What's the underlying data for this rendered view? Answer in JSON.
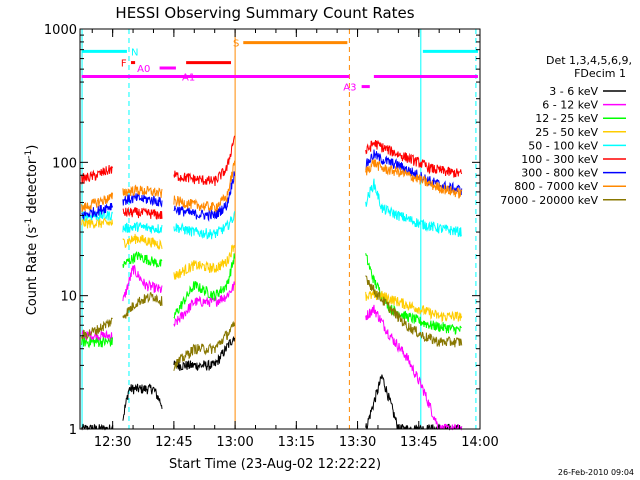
{
  "chart_data": {
    "type": "line",
    "title": "HESSI Observing Summary Count Rates",
    "xlabel": "Start Time (23-Aug-02 12:22:22)",
    "ylabel": "Count Rate (s",
    "ylabel_sup": "-1",
    "ylabel_tail": " detector",
    "ylabel_end": ")",
    "yscale": "log",
    "ylim": [
      1,
      1000
    ],
    "xlim": [
      22,
      120
    ],
    "x_unit": "minutes after 12:00",
    "x_ticks": [
      {
        "v": 30,
        "label": "12:30"
      },
      {
        "v": 45,
        "label": "12:45"
      },
      {
        "v": 60,
        "label": "13:00"
      },
      {
        "v": 75,
        "label": "13:15"
      },
      {
        "v": 90,
        "label": "13:30"
      },
      {
        "v": 105,
        "label": "13:45"
      },
      {
        "v": 120,
        "label": "14:00"
      }
    ],
    "y_ticks": [
      {
        "v": 1,
        "label": "1"
      },
      {
        "v": 10,
        "label": "10"
      },
      {
        "v": 100,
        "label": "100"
      },
      {
        "v": 1000,
        "label": "1000"
      }
    ],
    "legend_header": [
      "Det 1,3,4,5,6,9,",
      "FDecim 1"
    ],
    "legend_position": "right",
    "timestamp": "26-Feb-2010 09:04",
    "segments": [
      [
        22.4,
        30.0
      ],
      [
        32.5,
        42.2
      ],
      [
        45.0,
        59.9
      ],
      [
        92.0,
        115.6
      ]
    ],
    "series": [
      {
        "name": "3 - 6 keV",
        "color": "#000000",
        "values": [
          [
            22.4,
            1.0
          ],
          [
            30.0,
            1.0
          ],
          [
            32.5,
            1.2
          ],
          [
            34.0,
            2.0
          ],
          [
            37.0,
            2.0
          ],
          [
            40.0,
            2.0
          ],
          [
            42.2,
            1.5
          ],
          [
            45.0,
            3.0
          ],
          [
            50.0,
            3.0
          ],
          [
            55.0,
            3.0
          ],
          [
            59.9,
            5.0
          ],
          [
            92.0,
            1.0
          ],
          [
            96.0,
            2.5
          ],
          [
            100.0,
            1.0
          ],
          [
            108.0,
            1.0
          ],
          [
            115.6,
            1.0
          ]
        ]
      },
      {
        "name": "6 - 12 keV",
        "color": "#ff00ff",
        "values": [
          [
            22.4,
            5.0
          ],
          [
            30.0,
            5.0
          ],
          [
            32.5,
            9.0
          ],
          [
            35.0,
            16.0
          ],
          [
            38.0,
            12.0
          ],
          [
            42.2,
            11.0
          ],
          [
            45.0,
            6.0
          ],
          [
            50.0,
            9.0
          ],
          [
            55.0,
            9.0
          ],
          [
            58.0,
            10.0
          ],
          [
            59.9,
            12.0
          ],
          [
            92.0,
            7.0
          ],
          [
            94.0,
            8.0
          ],
          [
            98.0,
            5.0
          ],
          [
            102.0,
            3.5
          ],
          [
            106.0,
            2.0
          ],
          [
            110.0,
            1.0
          ],
          [
            115.6,
            1.0
          ]
        ]
      },
      {
        "name": "12 - 25 keV",
        "color": "#00ff00",
        "values": [
          [
            22.4,
            4.5
          ],
          [
            30.0,
            4.5
          ],
          [
            32.5,
            17.0
          ],
          [
            36.0,
            20.0
          ],
          [
            40.0,
            18.0
          ],
          [
            42.2,
            17.0
          ],
          [
            45.0,
            7.0
          ],
          [
            50.0,
            12.0
          ],
          [
            55.0,
            10.0
          ],
          [
            58.0,
            12.0
          ],
          [
            59.9,
            20.0
          ],
          [
            92.0,
            20.0
          ],
          [
            94.0,
            13.0
          ],
          [
            98.0,
            8.0
          ],
          [
            102.0,
            7.0
          ],
          [
            108.0,
            6.0
          ],
          [
            115.6,
            5.5
          ]
        ]
      },
      {
        "name": "25 - 50 keV",
        "color": "#ffcc00",
        "values": [
          [
            22.4,
            35.0
          ],
          [
            30.0,
            35.0
          ],
          [
            32.5,
            25.0
          ],
          [
            36.0,
            27.0
          ],
          [
            40.0,
            25.0
          ],
          [
            42.2,
            24.0
          ],
          [
            45.0,
            14.0
          ],
          [
            50.0,
            17.0
          ],
          [
            55.0,
            16.0
          ],
          [
            58.0,
            18.0
          ],
          [
            59.9,
            25.0
          ],
          [
            92.0,
            10.0
          ],
          [
            96.0,
            10.0
          ],
          [
            100.0,
            9.0
          ],
          [
            105.0,
            8.0
          ],
          [
            110.0,
            7.0
          ],
          [
            115.6,
            7.0
          ]
        ]
      },
      {
        "name": "50 - 100 keV",
        "color": "#00ffff",
        "values": [
          [
            22.4,
            40.0
          ],
          [
            30.0,
            40.0
          ],
          [
            32.5,
            32.0
          ],
          [
            36.0,
            33.0
          ],
          [
            40.0,
            32.0
          ],
          [
            42.2,
            32.0
          ],
          [
            45.0,
            33.0
          ],
          [
            50.0,
            30.0
          ],
          [
            55.0,
            29.0
          ],
          [
            58.0,
            33.0
          ],
          [
            59.9,
            40.0
          ],
          [
            92.0,
            50.0
          ],
          [
            94.0,
            70.0
          ],
          [
            96.0,
            45.0
          ],
          [
            100.0,
            40.0
          ],
          [
            105.0,
            35.0
          ],
          [
            110.0,
            32.0
          ],
          [
            115.6,
            30.0
          ]
        ]
      },
      {
        "name": "100 - 300 keV",
        "color": "#ff0000",
        "values": [
          [
            22.4,
            75.0
          ],
          [
            26.0,
            80.0
          ],
          [
            30.0,
            90.0
          ],
          [
            32.5,
            42.0
          ],
          [
            36.0,
            42.0
          ],
          [
            40.0,
            41.0
          ],
          [
            42.2,
            40.0
          ],
          [
            45.0,
            80.0
          ],
          [
            50.0,
            75.0
          ],
          [
            55.0,
            72.0
          ],
          [
            58.0,
            90.0
          ],
          [
            59.9,
            160.0
          ],
          [
            92.0,
            120.0
          ],
          [
            94.0,
            140.0
          ],
          [
            96.0,
            130.0
          ],
          [
            100.0,
            115.0
          ],
          [
            105.0,
            100.0
          ],
          [
            108.0,
            90.0
          ],
          [
            112.0,
            85.0
          ],
          [
            115.6,
            82.0
          ]
        ]
      },
      {
        "name": "300 - 800 keV",
        "color": "#0000ff",
        "values": [
          [
            22.4,
            40.0
          ],
          [
            26.0,
            43.0
          ],
          [
            30.0,
            48.0
          ],
          [
            32.5,
            52.0
          ],
          [
            36.0,
            54.0
          ],
          [
            40.0,
            52.0
          ],
          [
            42.2,
            50.0
          ],
          [
            45.0,
            45.0
          ],
          [
            50.0,
            41.0
          ],
          [
            55.0,
            40.0
          ],
          [
            58.0,
            48.0
          ],
          [
            59.9,
            85.0
          ],
          [
            92.0,
            95.0
          ],
          [
            94.0,
            115.0
          ],
          [
            96.0,
            105.0
          ],
          [
            100.0,
            95.0
          ],
          [
            105.0,
            80.0
          ],
          [
            108.0,
            72.0
          ],
          [
            112.0,
            65.0
          ],
          [
            115.6,
            62.0
          ]
        ]
      },
      {
        "name": "800 - 7000 keV",
        "color": "#ff8800",
        "values": [
          [
            22.4,
            45.0
          ],
          [
            26.0,
            50.0
          ],
          [
            30.0,
            55.0
          ],
          [
            32.5,
            60.0
          ],
          [
            36.0,
            62.0
          ],
          [
            40.0,
            60.0
          ],
          [
            42.2,
            58.0
          ],
          [
            45.0,
            52.0
          ],
          [
            50.0,
            48.0
          ],
          [
            55.0,
            46.0
          ],
          [
            58.0,
            55.0
          ],
          [
            59.9,
            100.0
          ],
          [
            92.0,
            85.0
          ],
          [
            94.0,
            100.0
          ],
          [
            96.0,
            90.0
          ],
          [
            100.0,
            85.0
          ],
          [
            105.0,
            75.0
          ],
          [
            108.0,
            68.0
          ],
          [
            112.0,
            62.0
          ],
          [
            115.6,
            58.0
          ]
        ]
      },
      {
        "name": "7000 - 20000 keV",
        "color": "#887700",
        "values": [
          [
            22.4,
            5.0
          ],
          [
            26.0,
            5.5
          ],
          [
            30.0,
            6.5
          ],
          [
            32.5,
            7.0
          ],
          [
            36.0,
            9.0
          ],
          [
            40.0,
            10.0
          ],
          [
            42.2,
            9.0
          ],
          [
            45.0,
            3.0
          ],
          [
            50.0,
            4.0
          ],
          [
            55.0,
            4.0
          ],
          [
            59.9,
            6.0
          ],
          [
            92.0,
            14.0
          ],
          [
            94.0,
            11.0
          ],
          [
            98.0,
            8.0
          ],
          [
            102.0,
            6.0
          ],
          [
            106.0,
            5.0
          ],
          [
            110.0,
            4.5
          ],
          [
            115.6,
            4.5
          ]
        ]
      }
    ],
    "flag_bars": [
      {
        "label": "N",
        "color": "#00ffff",
        "y": 680,
        "x1": 22.4,
        "x2": 33.5,
        "label_x": 34.5
      },
      {
        "label": "",
        "color": "#00ffff",
        "y": 680,
        "x1": 106.0,
        "x2": 119.5,
        "label_x": null
      },
      {
        "label": "F",
        "color": "#ff0000",
        "y": 560,
        "x1": 34.5,
        "x2": 35.5,
        "label_x": 32.0
      },
      {
        "label": "",
        "color": "#ff0000",
        "y": 560,
        "x1": 48.0,
        "x2": 59.0,
        "label_x": null
      },
      {
        "label": "S",
        "color": "#ff8800",
        "y": 790,
        "x1": 62.0,
        "x2": 87.5,
        "label_x": 59.5
      },
      {
        "label": "A0",
        "color": "#ff00ff",
        "y": 510,
        "x1": 41.5,
        "x2": 45.5,
        "label_x": 36.0
      },
      {
        "label": "A1",
        "color": "#ff00ff",
        "y": 440,
        "x1": 22.4,
        "x2": 88.0,
        "label_x": 47.0
      },
      {
        "label": "",
        "color": "#ff00ff",
        "y": 440,
        "x1": 94.0,
        "x2": 119.5,
        "label_x": null
      },
      {
        "label": "A3",
        "color": "#ff00ff",
        "y": 370,
        "x1": 91.0,
        "x2": 93.0,
        "label_x": 86.5
      }
    ],
    "vlines": [
      {
        "x": 22.5,
        "color": "#00ffff",
        "style": "solid"
      },
      {
        "x": 34.0,
        "color": "#00ffff",
        "style": "dashed"
      },
      {
        "x": 60.0,
        "color": "#ff8800",
        "style": "solid"
      },
      {
        "x": 88.0,
        "color": "#ff8800",
        "style": "dashed"
      },
      {
        "x": 105.5,
        "color": "#00ffff",
        "style": "solid"
      },
      {
        "x": 119.0,
        "color": "#00ffff",
        "style": "dashed"
      }
    ]
  }
}
